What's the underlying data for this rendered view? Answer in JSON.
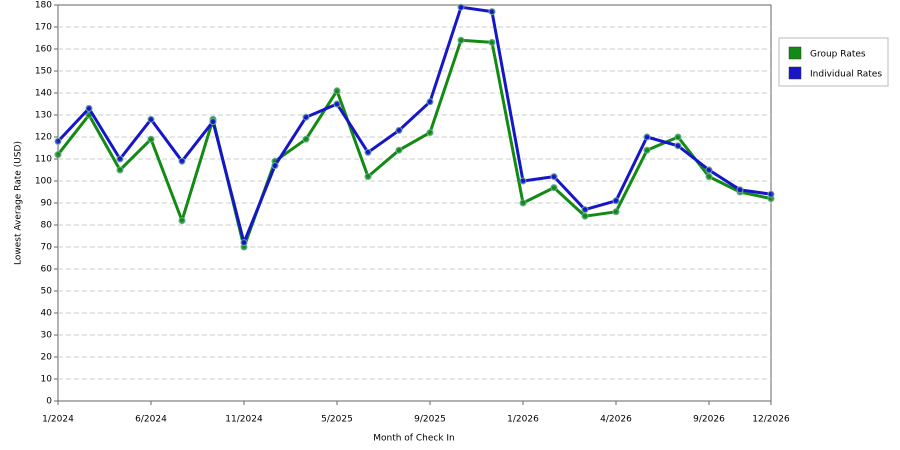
{
  "chart_data": {
    "type": "line",
    "y_label": "Lowest Average Rate (USD)",
    "x_label": "Month of Check In",
    "categories": [
      "1/2024",
      null,
      null,
      "6/2024",
      null,
      null,
      "11/2024",
      null,
      null,
      "5/2025",
      null,
      null,
      "9/2025",
      null,
      null,
      "1/2026",
      null,
      null,
      "4/2026",
      null,
      null,
      "9/2026",
      null,
      "12/2026"
    ],
    "series": [
      {
        "name": "Group Rates",
        "color": "#138a13",
        "values": [
          112,
          130,
          105,
          119,
          82,
          128,
          70,
          109,
          119,
          141,
          102,
          114,
          122,
          164,
          163,
          90,
          97,
          84,
          86,
          114,
          120,
          102,
          95,
          92
        ]
      },
      {
        "name": "Individual Rates",
        "color": "#1616c8",
        "values": [
          118,
          133,
          110,
          128,
          109,
          127,
          72,
          107,
          129,
          135,
          113,
          123,
          136,
          179,
          177,
          100,
          102,
          87,
          91,
          120,
          116,
          105,
          96,
          94
        ]
      }
    ],
    "ylim": [
      0,
      180
    ],
    "yticks": [
      0,
      10,
      20,
      30,
      40,
      50,
      60,
      70,
      80,
      90,
      100,
      110,
      120,
      130,
      140,
      150,
      160,
      170,
      180
    ],
    "grid": true,
    "legend": "right"
  }
}
